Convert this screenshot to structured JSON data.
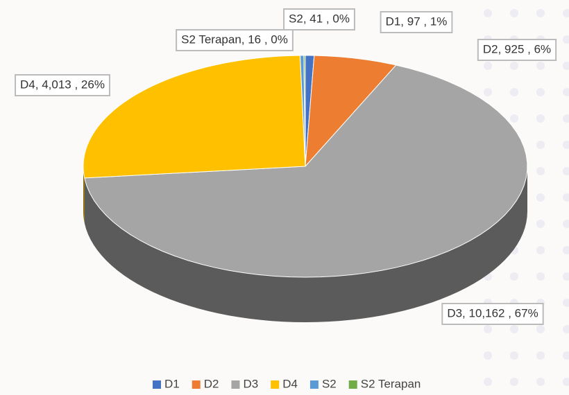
{
  "chart_data": {
    "type": "pie",
    "categories": [
      "D1",
      "D2",
      "D3",
      "D4",
      "S2",
      "S2 Terapan"
    ],
    "values": [
      97,
      925,
      10162,
      4013,
      41,
      16
    ],
    "value_labels": [
      "D1, 97 , 1%",
      "D2, 925 , 6%",
      "D3, 10,162 , 67%",
      "D4, 4,013 , 26%",
      "S2, 41 , 0%",
      "S2 Terapan, 16 , 0%"
    ],
    "colors": [
      "#4472c4",
      "#ed7d31",
      "#a5a5a5",
      "#ffc000",
      "#5b9bd5",
      "#70ad47"
    ],
    "legend": "bottom"
  }
}
